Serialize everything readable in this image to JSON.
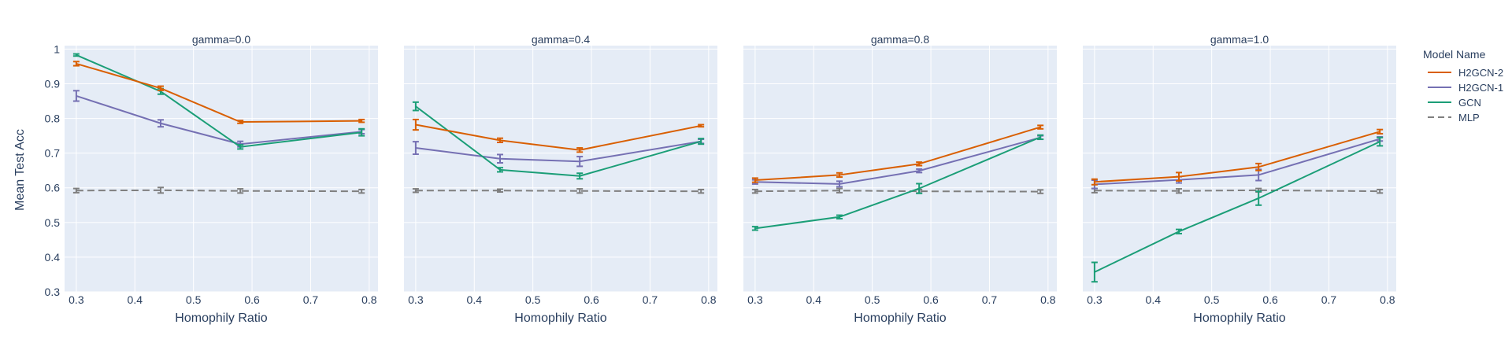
{
  "chart_data": {
    "type": "line",
    "x": [
      0.3,
      0.444,
      0.58,
      0.787
    ],
    "xlabel": "Homophily Ratio",
    "ylabel": "Mean Test Acc",
    "xlim": [
      0.28,
      0.815
    ],
    "ylim": [
      0.3,
      1.01
    ],
    "xticks": [
      "0.3",
      "0.4",
      "0.5",
      "0.6",
      "0.7",
      "0.8"
    ],
    "yticks": [
      "0.3",
      "0.4",
      "0.5",
      "0.6",
      "0.7",
      "0.8",
      "0.9",
      "1"
    ],
    "grid": true,
    "legend": {
      "title": "Model Name",
      "placement": "right",
      "entries": [
        "H2GCN-2",
        "H2GCN-1",
        "GCN",
        "MLP"
      ]
    },
    "colors": {
      "H2GCN-2": "#d95f02",
      "H2GCN-1": "#7570b3",
      "GCN": "#1b9e77",
      "MLP": "#7f7f7f"
    },
    "panels": [
      {
        "title": "gamma=0.0",
        "series": [
          {
            "name": "H2GCN-2",
            "values": [
              0.958,
              0.887,
              0.79,
              0.793
            ],
            "errors": [
              0.006,
              0.006,
              0.004,
              0.004
            ]
          },
          {
            "name": "H2GCN-1",
            "values": [
              0.865,
              0.786,
              0.726,
              0.762
            ],
            "errors": [
              0.015,
              0.01,
              0.008,
              0.006
            ]
          },
          {
            "name": "GCN",
            "values": [
              0.983,
              0.878,
              0.718,
              0.76
            ],
            "errors": [
              0.003,
              0.008,
              0.006,
              0.01
            ]
          },
          {
            "name": "MLP",
            "values": [
              0.592,
              0.593,
              0.591,
              0.59
            ],
            "errors": [
              0.006,
              0.008,
              0.006,
              0.005
            ]
          }
        ]
      },
      {
        "title": "gamma=0.4",
        "series": [
          {
            "name": "H2GCN-2",
            "values": [
              0.782,
              0.737,
              0.709,
              0.779
            ],
            "errors": [
              0.015,
              0.006,
              0.006,
              0.003
            ]
          },
          {
            "name": "H2GCN-1",
            "values": [
              0.715,
              0.684,
              0.676,
              0.734
            ],
            "errors": [
              0.018,
              0.012,
              0.014,
              0.006
            ]
          },
          {
            "name": "GCN",
            "values": [
              0.835,
              0.652,
              0.634,
              0.734
            ],
            "errors": [
              0.012,
              0.006,
              0.008,
              0.008
            ]
          },
          {
            "name": "MLP",
            "values": [
              0.592,
              0.592,
              0.591,
              0.59
            ],
            "errors": [
              0.005,
              0.004,
              0.006,
              0.005
            ]
          }
        ]
      },
      {
        "title": "gamma=0.8",
        "series": [
          {
            "name": "H2GCN-2",
            "values": [
              0.622,
              0.637,
              0.669,
              0.775
            ],
            "errors": [
              0.006,
              0.006,
              0.005,
              0.005
            ]
          },
          {
            "name": "H2GCN-1",
            "values": [
              0.617,
              0.611,
              0.649,
              0.745
            ],
            "errors": [
              0.006,
              0.008,
              0.005,
              0.005
            ]
          },
          {
            "name": "GCN",
            "values": [
              0.483,
              0.516,
              0.598,
              0.746
            ],
            "errors": [
              0.005,
              0.005,
              0.014,
              0.006
            ]
          },
          {
            "name": "MLP",
            "values": [
              0.59,
              0.592,
              0.59,
              0.589
            ],
            "errors": [
              0.005,
              0.006,
              0.005,
              0.005
            ]
          }
        ]
      },
      {
        "title": "gamma=1.0",
        "series": [
          {
            "name": "H2GCN-2",
            "values": [
              0.617,
              0.632,
              0.66,
              0.762
            ],
            "errors": [
              0.008,
              0.012,
              0.01,
              0.006
            ]
          },
          {
            "name": "H2GCN-1",
            "values": [
              0.61,
              0.623,
              0.637,
              0.741
            ],
            "errors": [
              0.012,
              0.009,
              0.016,
              0.006
            ]
          },
          {
            "name": "GCN",
            "values": [
              0.357,
              0.474,
              0.57,
              0.733
            ],
            "errors": [
              0.028,
              0.006,
              0.02,
              0.012
            ]
          },
          {
            "name": "MLP",
            "values": [
              0.592,
              0.591,
              0.593,
              0.59
            ],
            "errors": [
              0.006,
              0.006,
              0.005,
              0.005
            ]
          }
        ]
      }
    ]
  }
}
